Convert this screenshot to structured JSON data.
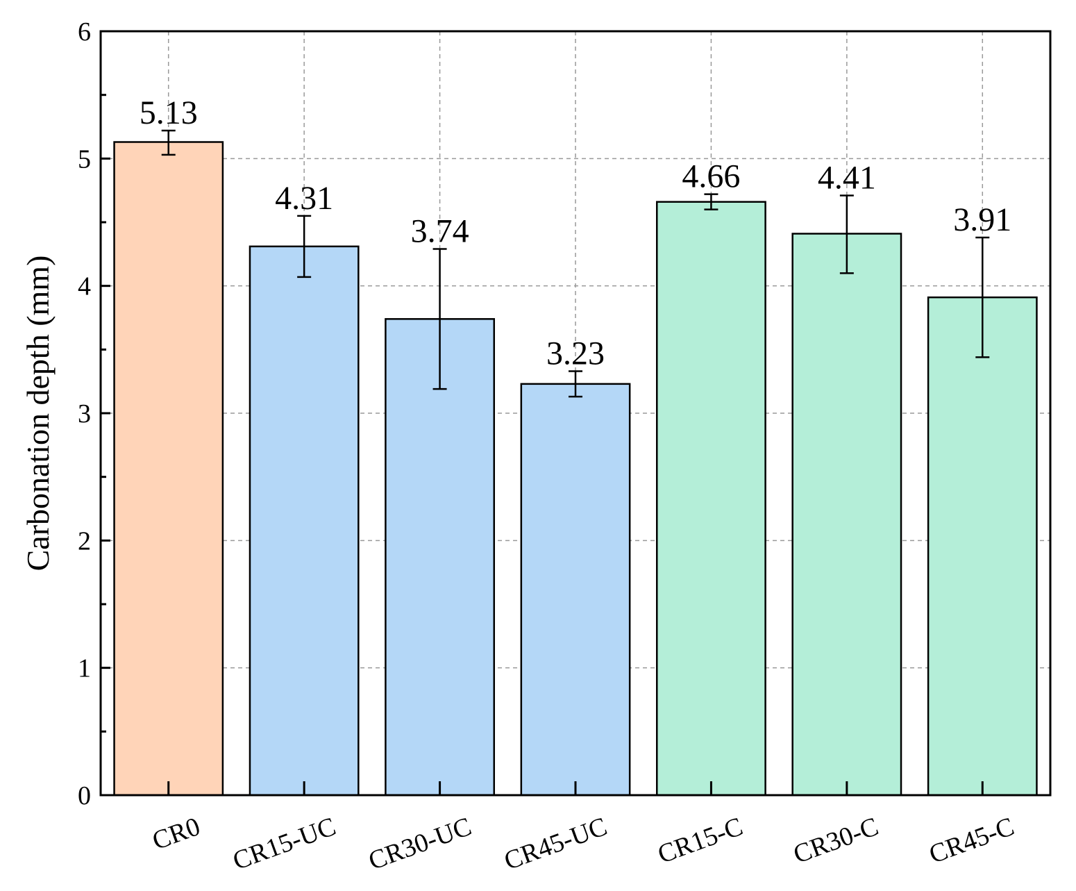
{
  "chart_data": {
    "type": "bar",
    "categories": [
      "CR0",
      "CR15-UC",
      "CR30-UC",
      "CR45-UC",
      "CR15-C",
      "CR30-C",
      "CR45-C"
    ],
    "values": [
      5.13,
      4.31,
      3.74,
      3.23,
      4.66,
      4.41,
      3.91
    ],
    "error_low": [
      5.03,
      4.07,
      3.19,
      3.13,
      4.6,
      4.1,
      3.44
    ],
    "error_high": [
      5.22,
      4.55,
      4.29,
      3.33,
      4.72,
      4.71,
      4.38
    ],
    "data_labels": [
      "5.13",
      "4.31",
      "3.74",
      "3.23",
      "4.66",
      "4.41",
      "3.91"
    ],
    "bar_colors": [
      "#FFD4B8",
      "#B4D7F7",
      "#B4D7F7",
      "#B4D7F7",
      "#B4EED8",
      "#B4EED8",
      "#B4EED8"
    ],
    "title": "",
    "xlabel": "",
    "ylabel": "Carbonation depth (mm)",
    "ylim": [
      0,
      6
    ],
    "yticks": [
      0,
      1,
      2,
      3,
      4,
      5,
      6
    ],
    "ytick_labels": [
      "0",
      "1",
      "2",
      "3",
      "4",
      "5",
      "6"
    ],
    "grid": true,
    "grid_style": "dashed",
    "grid_color": "#999999",
    "legend": "none"
  }
}
